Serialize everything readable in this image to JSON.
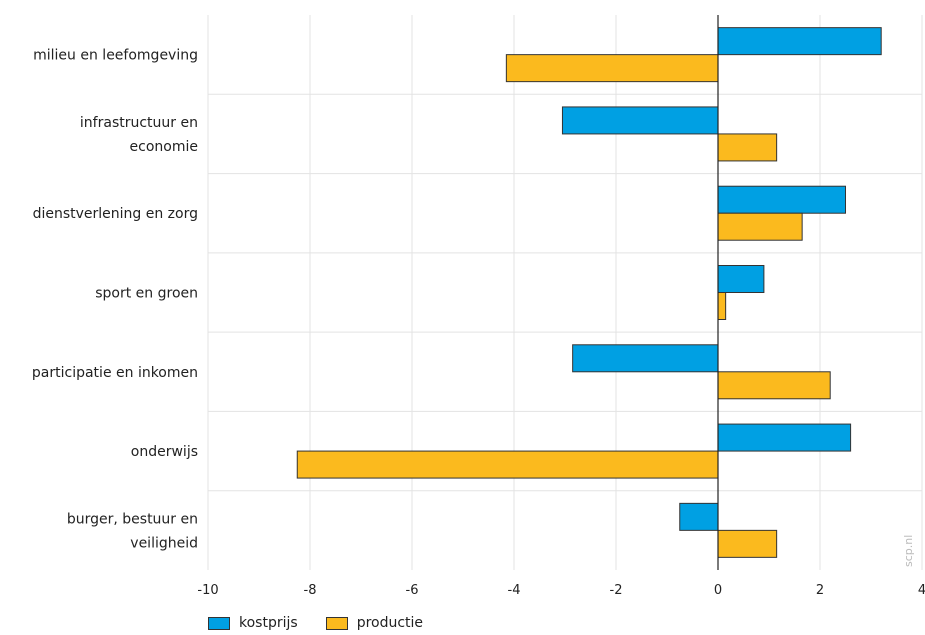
{
  "chart_data": {
    "type": "bar",
    "orientation": "horizontal",
    "categories": [
      [
        "milieu en leefomgeving"
      ],
      [
        "infrastructuur en",
        "economie"
      ],
      [
        "dienstverlening en zorg"
      ],
      [
        "sport en groen"
      ],
      [
        "participatie en inkomen"
      ],
      [
        "onderwijs"
      ],
      [
        "burger, bestuur en",
        "veiligheid"
      ]
    ],
    "series": [
      {
        "name": "kostprijs",
        "color": "#00a0e3",
        "values": [
          3.2,
          -3.05,
          2.5,
          0.9,
          -2.85,
          2.6,
          -0.75
        ]
      },
      {
        "name": "productie",
        "color": "#fbba1e",
        "values": [
          -4.15,
          1.15,
          1.65,
          0.15,
          2.2,
          -8.25,
          1.15
        ]
      }
    ],
    "xlim": [
      -10,
      4
    ],
    "xticks": [
      -10,
      -8,
      -6,
      -4,
      -2,
      0,
      2,
      4
    ],
    "grid": true,
    "legend_position": "bottom-left",
    "watermark": "scp.nl"
  }
}
